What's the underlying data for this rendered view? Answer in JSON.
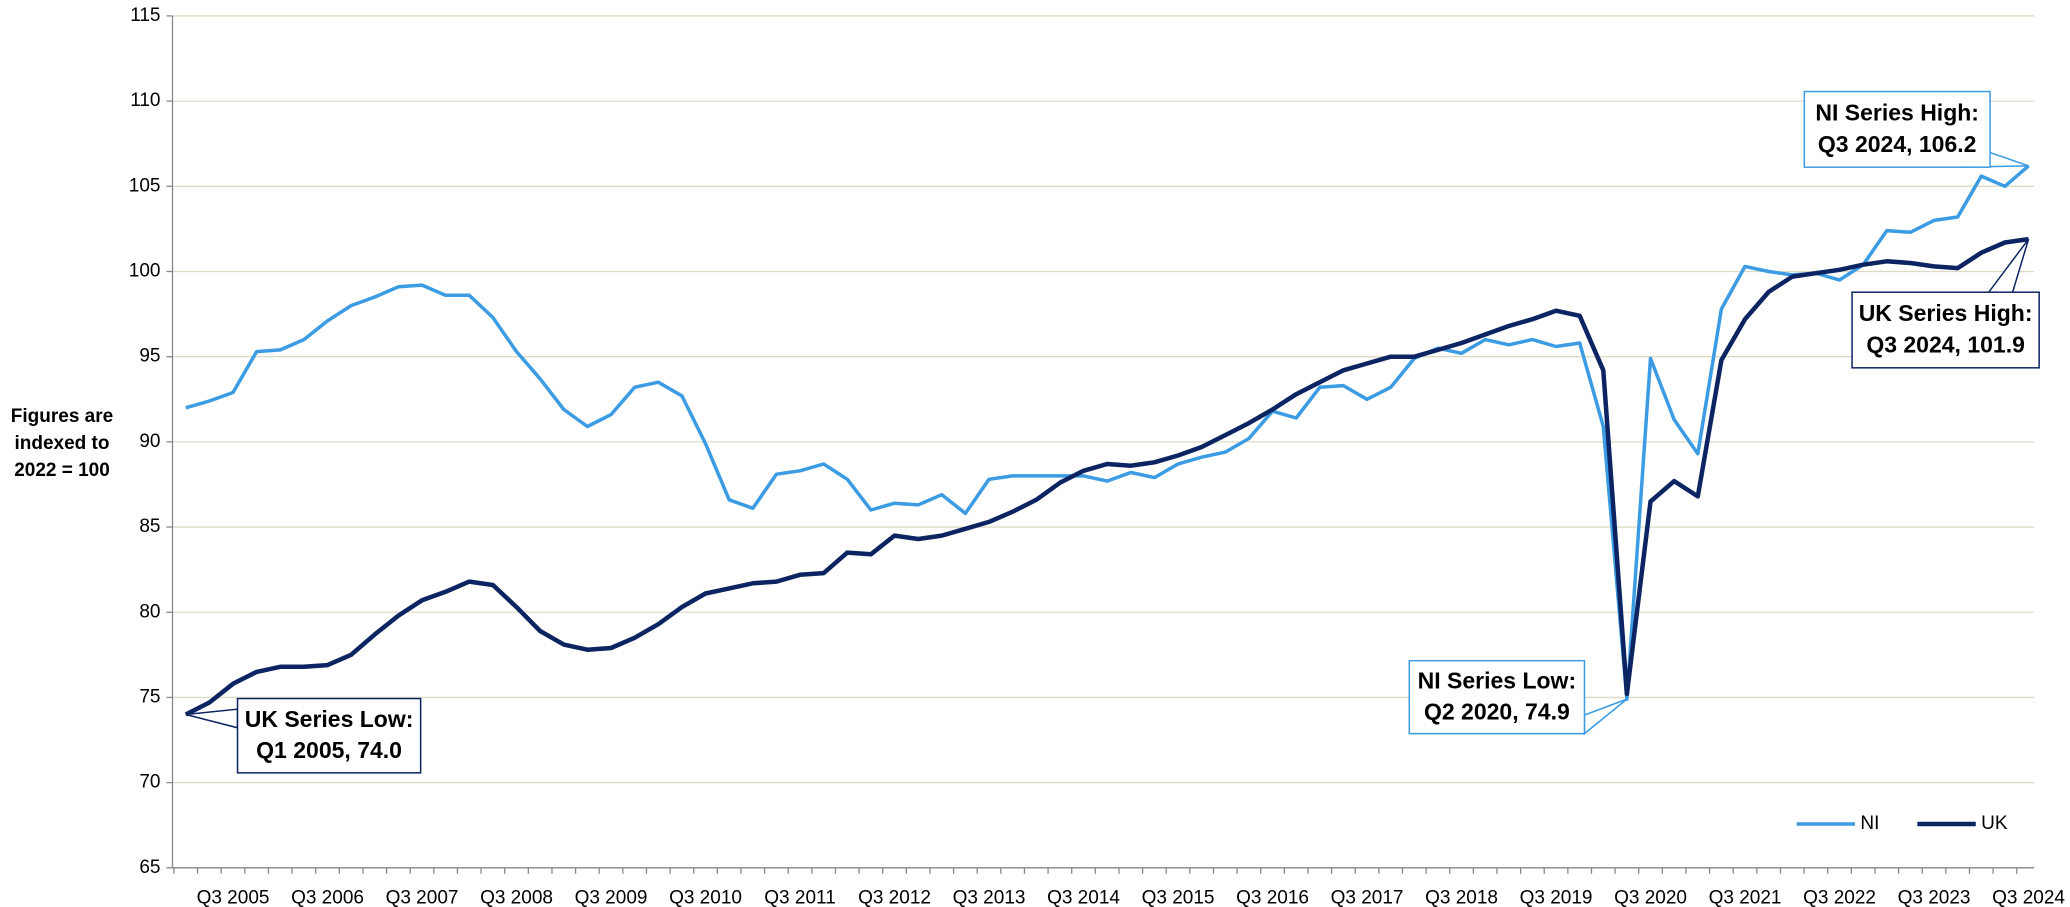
{
  "chart_data": {
    "type": "line",
    "y_label": [
      "Figures are",
      "indexed to",
      "2022 = 100"
    ],
    "categories": [
      null,
      null,
      "Q3 2005",
      null,
      null,
      null,
      "Q3 2006",
      null,
      null,
      null,
      "Q3 2007",
      null,
      null,
      null,
      "Q3 2008",
      null,
      null,
      null,
      "Q3 2009",
      null,
      null,
      null,
      "Q3 2010",
      null,
      null,
      null,
      "Q3 2011",
      null,
      null,
      null,
      "Q3 2012",
      null,
      null,
      null,
      "Q3 2013",
      null,
      null,
      null,
      "Q3 2014",
      null,
      null,
      null,
      "Q3 2015",
      null,
      null,
      null,
      "Q3 2016",
      null,
      null,
      null,
      "Q3 2017",
      null,
      null,
      null,
      "Q3 2018",
      null,
      null,
      null,
      "Q3 2019",
      null,
      null,
      null,
      "Q3 2020",
      null,
      null,
      null,
      "Q3 2021",
      null,
      null,
      null,
      "Q3 2022",
      null,
      null,
      null,
      "Q3 2023",
      null,
      null,
      null,
      "Q3 2024"
    ],
    "series": [
      {
        "name": "NI",
        "color": "#3b9be3",
        "values": [
          92.0,
          92.4,
          92.9,
          95.3,
          95.4,
          96.0,
          97.1,
          98.0,
          98.5,
          99.1,
          99.2,
          98.6,
          98.6,
          97.3,
          95.3,
          93.7,
          91.9,
          90.9,
          91.6,
          93.2,
          93.5,
          92.7,
          89.9,
          86.6,
          86.1,
          88.1,
          88.3,
          88.7,
          87.8,
          86.0,
          86.4,
          86.3,
          86.9,
          85.8,
          87.8,
          88.0,
          88.0,
          88.0,
          88.0,
          87.7,
          88.2,
          87.9,
          88.7,
          89.1,
          89.4,
          90.2,
          91.8,
          91.4,
          93.2,
          93.3,
          92.5,
          93.2,
          94.9,
          95.5,
          95.2,
          96.0,
          95.7,
          96.0,
          95.6,
          95.8,
          90.9,
          74.9,
          94.9,
          91.3,
          89.3,
          97.8,
          100.3,
          100.0,
          99.8,
          99.9,
          99.5,
          100.4,
          102.4,
          102.3,
          103.0,
          103.2,
          105.6,
          105.0,
          106.2
        ]
      },
      {
        "name": "UK",
        "color": "#0c2461",
        "values": [
          74.0,
          74.7,
          75.8,
          76.5,
          76.8,
          76.8,
          76.9,
          77.5,
          78.7,
          79.8,
          80.7,
          81.2,
          81.8,
          81.6,
          80.3,
          78.9,
          78.1,
          77.8,
          77.9,
          78.5,
          79.3,
          80.3,
          81.1,
          81.4,
          81.7,
          81.8,
          82.2,
          82.3,
          83.5,
          83.4,
          84.5,
          84.3,
          84.5,
          84.9,
          85.3,
          85.9,
          86.6,
          87.6,
          88.3,
          88.7,
          88.6,
          88.8,
          89.2,
          89.7,
          90.4,
          91.1,
          91.9,
          92.8,
          93.5,
          94.2,
          94.6,
          95.0,
          95.0,
          95.4,
          95.8,
          96.3,
          96.8,
          97.2,
          97.7,
          97.4,
          94.2,
          75.2,
          86.5,
          87.7,
          86.8,
          94.8,
          97.2,
          98.8,
          99.7,
          99.9,
          100.1,
          100.4,
          100.6,
          100.5,
          100.3,
          100.2,
          101.1,
          101.7,
          101.9
        ]
      }
    ],
    "ylim": [
      65,
      115
    ],
    "yticks": [
      65,
      70,
      75,
      80,
      85,
      90,
      95,
      100,
      105,
      110,
      115
    ],
    "grid": true,
    "legend": "lower right",
    "annotations": [
      {
        "text": [
          "UK Series Low:",
          "Q1 2005, 74.0"
        ],
        "series": 1,
        "index": 0
      },
      {
        "text": [
          "NI Series Low:",
          "Q2 2020, 74.9"
        ],
        "series": 0,
        "index": 61
      },
      {
        "text": [
          "NI Series High:",
          "Q3 2024, 106.2"
        ],
        "series": 0,
        "index": 78
      },
      {
        "text": [
          "UK Series High:",
          "Q3 2024, 101.9"
        ],
        "series": 1,
        "index": 78
      }
    ]
  }
}
